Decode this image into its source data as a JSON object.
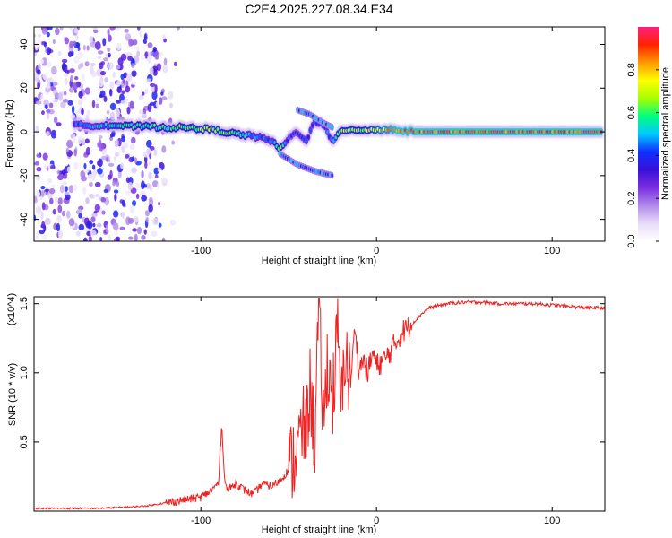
{
  "title": "C2E4.2025.227.08.34.E34",
  "colors": {
    "snr_line": "#ee2222",
    "axis": "#000000",
    "colormap": [
      "#ffffff",
      "#e8dcf8",
      "#b08ae8",
      "#7a2ee0",
      "#3a10d8",
      "#1030ff",
      "#00c8ff",
      "#00ff80",
      "#a8ff00",
      "#ffff00",
      "#ff9900",
      "#ff2200",
      "#ff2080"
    ]
  },
  "chart_data": [
    {
      "type": "heatmap",
      "title": "C2E4.2025.227.08.34.E34",
      "xlabel": "Height of straight line (km)",
      "ylabel": "Frequency (Hz)",
      "xlim": [
        -195,
        130
      ],
      "ylim": [
        -50,
        48
      ],
      "x_ticks": [
        -100,
        0,
        100
      ],
      "x_tick_labels": [
        "-100",
        "0",
        "100"
      ],
      "y_ticks": [
        -40,
        -20,
        0,
        20,
        40
      ],
      "y_tick_labels": [
        "-40",
        "-20",
        "0",
        "20",
        "40"
      ],
      "colorbar": {
        "label": "Normalized spectral amplitude",
        "range": [
          0.0,
          1.0
        ],
        "ticks": [
          0.0,
          0.2,
          0.4,
          0.6,
          0.8
        ],
        "tick_labels": [
          "0.0",
          "0.2",
          "0.4",
          "0.6",
          "0.8"
        ]
      },
      "ridge": {
        "x": [
          -172,
          -160,
          -150,
          -140,
          -130,
          -120,
          -110,
          -100,
          -90,
          -80,
          -70,
          -60,
          -55,
          -50,
          -45,
          -40,
          -35,
          -30,
          -25,
          -20,
          -10,
          0,
          10,
          20,
          40,
          60,
          80,
          100,
          128
        ],
        "y": [
          3,
          3,
          3,
          2.5,
          2.5,
          2,
          2,
          1.5,
          0.5,
          -1,
          -2,
          -4,
          -8,
          -3,
          0,
          -4,
          5,
          3,
          -5,
          1,
          1,
          1,
          1,
          0,
          0,
          0,
          0,
          0,
          0
        ],
        "amplitude": [
          0.45,
          0.5,
          0.55,
          0.6,
          0.6,
          0.6,
          0.65,
          0.7,
          0.7,
          0.6,
          0.5,
          0.45,
          0.7,
          0.4,
          0.4,
          0.45,
          0.45,
          0.5,
          0.45,
          0.7,
          0.7,
          0.8,
          0.9,
          0.95,
          0.95,
          0.95,
          0.95,
          0.95,
          0.95
        ]
      },
      "branches": [
        {
          "x": [
            -55,
            -45,
            -35,
            -25
          ],
          "y": [
            -10,
            -15,
            -18,
            -20
          ]
        },
        {
          "x": [
            -45,
            -38,
            -30,
            -25
          ],
          "y": [
            10,
            8,
            4,
            2
          ]
        }
      ]
    },
    {
      "type": "line",
      "xlabel": "Height of straight line (km)",
      "ylabel": "SNR (10 * v/v)",
      "y_scale_label": "(x10^4)",
      "xlim": [
        -195,
        130
      ],
      "ylim": [
        0,
        1.55
      ],
      "x_ticks": [
        -100,
        0,
        100
      ],
      "x_tick_labels": [
        "-100",
        "0",
        "100"
      ],
      "y_ticks": [
        0.5,
        1.0,
        1.5
      ],
      "y_tick_labels": [
        "0.5",
        "1.0",
        "1.5"
      ],
      "series": [
        {
          "x": [
            -195,
            -180,
            -160,
            -140,
            -130,
            -120,
            -110,
            -100,
            -95,
            -90,
            -88,
            -87,
            -85,
            -80,
            -75,
            -70,
            -65,
            -60,
            -55,
            -50,
            -45,
            -42,
            -40,
            -38,
            -35,
            -33,
            -30,
            -28,
            -25,
            -22,
            -20,
            -18,
            -15,
            -12,
            -10,
            -8,
            -5,
            -2,
            0,
            5,
            10,
            15,
            20,
            25,
            30,
            40,
            50,
            60,
            70,
            80,
            90,
            100,
            110,
            120,
            130
          ],
          "y": [
            0.02,
            0.02,
            0.02,
            0.03,
            0.04,
            0.06,
            0.08,
            0.1,
            0.14,
            0.2,
            0.65,
            0.3,
            0.15,
            0.2,
            0.15,
            0.12,
            0.2,
            0.18,
            0.22,
            0.3,
            0.45,
            0.6,
            0.55,
            0.9,
            0.5,
            1.47,
            0.6,
            1.1,
            0.8,
            1.3,
            0.7,
            1.2,
            0.9,
            1.35,
            1.0,
            1.1,
            1.0,
            1.15,
            1.05,
            1.1,
            1.2,
            1.3,
            1.35,
            1.42,
            1.47,
            1.5,
            1.51,
            1.51,
            1.5,
            1.5,
            1.5,
            1.49,
            1.48,
            1.47,
            1.47
          ]
        }
      ]
    }
  ]
}
